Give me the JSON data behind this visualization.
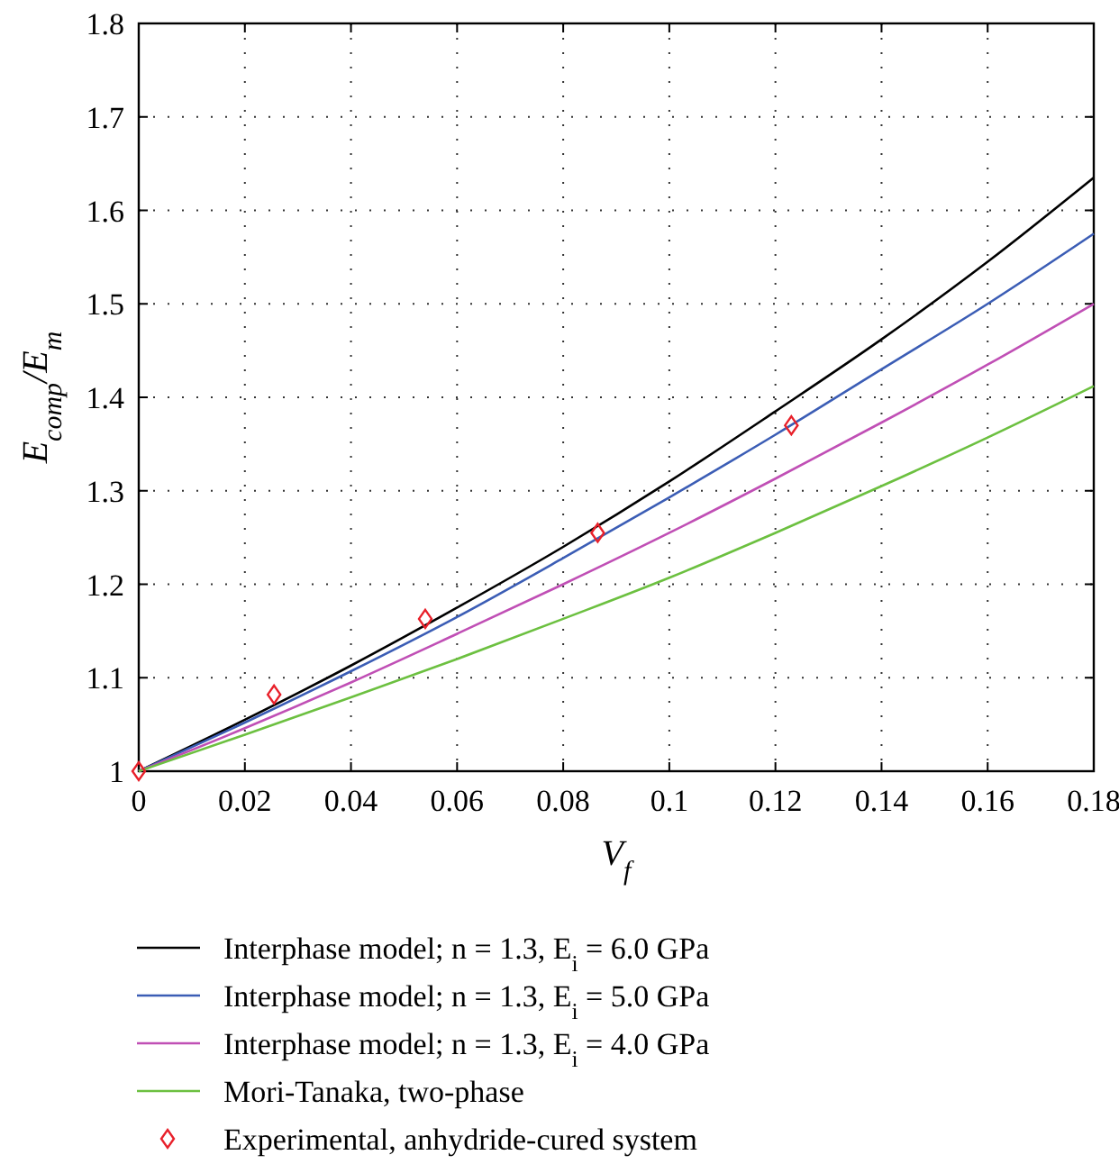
{
  "chart_data": {
    "type": "line",
    "xlabel": "V$_{f}$",
    "ylabel": "E$_{comp}$/E$_{m}$",
    "xlim": [
      0,
      0.18
    ],
    "xticks": [
      0,
      0.02,
      0.04,
      0.06,
      0.08,
      0.1,
      0.12,
      0.14,
      0.16,
      0.18
    ],
    "ylim": [
      1,
      1.8
    ],
    "yticks": [
      1,
      1.1,
      1.2,
      1.3,
      1.4,
      1.5,
      1.6,
      1.7,
      1.8
    ],
    "grid": true,
    "legend": "bottom",
    "line_style": "solid",
    "x": [
      0,
      0.02,
      0.04,
      0.06,
      0.08,
      0.1,
      0.12,
      0.14,
      0.16,
      0.18
    ],
    "series": [
      {
        "name": "Interphase model; n = 1.3, E$_{i}$ = 6.0 GPa",
        "color": "#000000",
        "values": [
          1,
          1.055,
          1.113,
          1.175,
          1.24,
          1.31,
          1.385,
          1.462,
          1.545,
          1.635
        ]
      },
      {
        "name": "Interphase model; n = 1.3, E$_{i}$ = 5.0 GPa",
        "color": "#3b5db5",
        "values": [
          1,
          1.052,
          1.107,
          1.165,
          1.228,
          1.293,
          1.36,
          1.43,
          1.5,
          1.575
        ]
      },
      {
        "name": "Interphase model; n = 1.3, E$_{i}$ = 4.0 GPa",
        "color": "#c04fb5",
        "values": [
          1,
          1.046,
          1.095,
          1.147,
          1.2,
          1.255,
          1.313,
          1.373,
          1.435,
          1.5
        ]
      },
      {
        "name": "Mori-Tanaka, two-phase",
        "color": "#6cc040",
        "values": [
          1,
          1.039,
          1.079,
          1.12,
          1.163,
          1.207,
          1.255,
          1.305,
          1.357,
          1.412
        ]
      },
      {
        "name": "Experimental, anhydride-cured system",
        "type": "scatter",
        "marker": "diamond",
        "color": "#e8202a",
        "x": [
          0,
          0.0255,
          0.054,
          0.0865,
          0.123
        ],
        "values": [
          1,
          1.082,
          1.163,
          1.255,
          1.37
        ]
      }
    ]
  }
}
